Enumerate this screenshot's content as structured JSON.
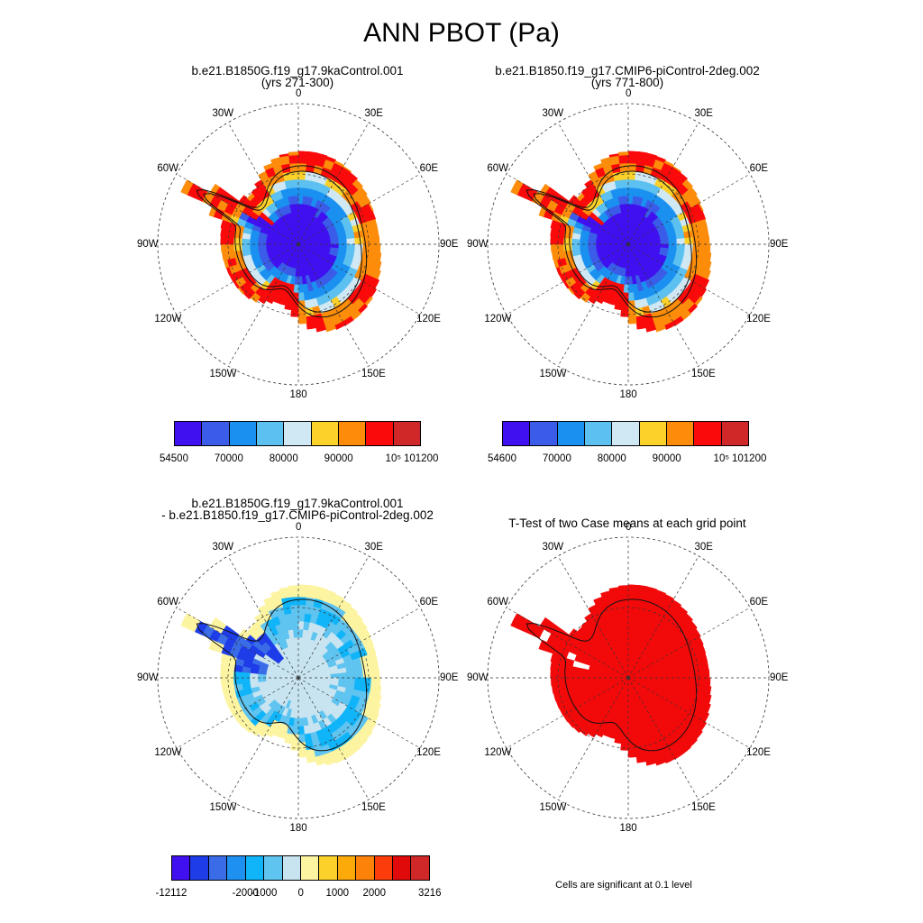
{
  "figure": {
    "title": "ANN PBOT (Pa)",
    "longitude_labels": [
      "0",
      "30E",
      "60E",
      "90E",
      "120E",
      "150E",
      "180",
      "150W",
      "120W",
      "90W",
      "60W",
      "30W"
    ]
  },
  "panels": [
    {
      "id": "case1",
      "title_line1": "b.e21.B1850G.f19_g17.9kaControl.001",
      "title_line2": "(yrs 271-300)",
      "palette": "pressure"
    },
    {
      "id": "case2",
      "title_line1": "b.e21.B1850.f19_g17.CMIP6-piControl-2deg.002",
      "title_line2": "(yrs 771-800)",
      "palette": "pressure"
    },
    {
      "id": "difference",
      "title_line1": "b.e21.B1850G.f19_g17.9kaControl.001",
      "title_line2": "- b.e21.B1850.f19_g17.CMIP6-piControl-2deg.002",
      "palette": "difference"
    },
    {
      "id": "ttest",
      "title_line1": "T-Test of two Case means at each grid point",
      "title_line2": "",
      "palette": "ttest"
    }
  ],
  "colorbars": [
    {
      "colors": [
        "#4010f0",
        "#3a5ce8",
        "#1a90f0",
        "#5cc0f0",
        "#cfe8f4",
        "#fcd22a",
        "#fc8c0a",
        "#fa0a0a",
        "#d02828"
      ],
      "labels": [
        {
          "text": "54500",
          "pos": 0.0
        },
        {
          "text": "70000",
          "pos": 0.2222
        },
        {
          "text": "80000",
          "pos": 0.4444
        },
        {
          "text": "90000",
          "pos": 0.6667
        },
        {
          "text": "10⁵",
          "pos": 0.8889
        },
        {
          "text": "101200",
          "pos": 1.0
        }
      ]
    },
    {
      "colors": [
        "#4010f0",
        "#3a5ce8",
        "#1a90f0",
        "#5cc0f0",
        "#cfe8f4",
        "#fcd22a",
        "#fc8c0a",
        "#fa0a0a",
        "#d02828"
      ],
      "labels": [
        {
          "text": "54600",
          "pos": 0.0
        },
        {
          "text": "70000",
          "pos": 0.2222
        },
        {
          "text": "80000",
          "pos": 0.4444
        },
        {
          "text": "90000",
          "pos": 0.6667
        },
        {
          "text": "10⁵",
          "pos": 0.8889
        },
        {
          "text": "101200",
          "pos": 1.0
        }
      ]
    },
    {
      "colors": [
        "#4010f0",
        "#1e3ce8",
        "#3a6ce8",
        "#1e90f0",
        "#10b4f8",
        "#60c4f0",
        "#c8e4f0",
        "#fcf4a0",
        "#fcd22a",
        "#fcaa0a",
        "#fc820a",
        "#fc3c0a",
        "#e00a0a",
        "#d02828"
      ],
      "labels": [
        {
          "text": "-12112",
          "pos": 0.0
        },
        {
          "text": "-2000",
          "pos": 0.2857
        },
        {
          "text": "-1000",
          "pos": 0.3571
        },
        {
          "text": "0",
          "pos": 0.5
        },
        {
          "text": "1000",
          "pos": 0.6429
        },
        {
          "text": "2000",
          "pos": 0.7857
        },
        {
          "text": "3216",
          "pos": 1.0
        }
      ]
    }
  ],
  "footnote": "Cells are significant at 0.1 level"
}
